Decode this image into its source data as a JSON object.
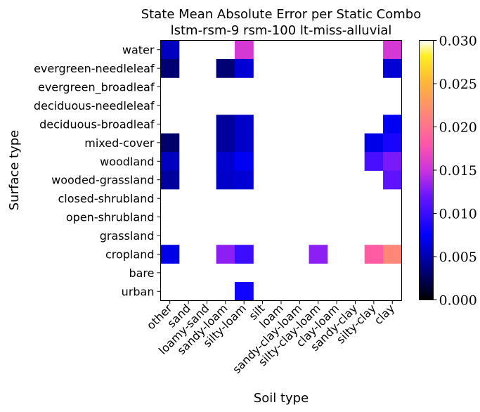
{
  "chart_data": {
    "type": "heatmap",
    "title": "State Mean Absolute Error per Static Combo",
    "subtitle": "lstm-rsm-9 rsm-100 lt-miss-alluvial",
    "xlabel": "Soil type",
    "ylabel": "Surface type",
    "x_categories": [
      "other",
      "sand",
      "loamy-sand",
      "sandy-loam",
      "silty-loam",
      "silt",
      "loam",
      "sandy-clay-loam",
      "silty-clay-loam",
      "clay-loam",
      "sandy-clay",
      "silty-clay",
      "clay"
    ],
    "y_categories": [
      "water",
      "evergreen-needleleaf",
      "evergreen_broadleaf",
      "deciduous-needleleaf",
      "deciduous-broadleaf",
      "mixed-cover",
      "woodland",
      "wooded-grassland",
      "closed-shrubland",
      "open-shrubland",
      "grassland",
      "cropland",
      "bare",
      "urban"
    ],
    "values": [
      [
        0.0055,
        null,
        null,
        null,
        0.0155,
        null,
        null,
        null,
        null,
        null,
        null,
        null,
        0.0155
      ],
      [
        0.0032,
        null,
        null,
        0.0033,
        0.0062,
        null,
        null,
        null,
        null,
        null,
        null,
        null,
        0.0062
      ],
      [
        null,
        null,
        null,
        null,
        null,
        null,
        null,
        null,
        null,
        null,
        null,
        null,
        null
      ],
      [
        null,
        null,
        null,
        null,
        null,
        null,
        null,
        null,
        null,
        null,
        null,
        null,
        null
      ],
      [
        null,
        null,
        null,
        0.0045,
        0.0058,
        null,
        null,
        null,
        null,
        null,
        null,
        null,
        0.0072
      ],
      [
        0.003,
        null,
        null,
        0.0045,
        0.0058,
        null,
        null,
        null,
        null,
        null,
        null,
        0.0068,
        0.0085
      ],
      [
        0.0055,
        null,
        null,
        0.006,
        0.0072,
        null,
        null,
        null,
        null,
        null,
        null,
        0.0105,
        0.0125
      ],
      [
        0.0045,
        null,
        null,
        0.0058,
        0.0062,
        null,
        null,
        null,
        null,
        null,
        null,
        null,
        0.0115
      ],
      [
        null,
        null,
        null,
        null,
        null,
        null,
        null,
        null,
        null,
        null,
        null,
        null,
        null
      ],
      [
        null,
        null,
        null,
        null,
        null,
        null,
        null,
        null,
        null,
        null,
        null,
        null,
        null
      ],
      [
        null,
        null,
        null,
        null,
        null,
        null,
        null,
        null,
        null,
        null,
        null,
        null,
        null
      ],
      [
        0.0068,
        null,
        null,
        0.013,
        0.01,
        null,
        null,
        null,
        0.013,
        null,
        null,
        0.0185,
        0.0215
      ],
      [
        null,
        null,
        null,
        null,
        null,
        null,
        null,
        null,
        null,
        null,
        null,
        null,
        null
      ],
      [
        null,
        null,
        null,
        null,
        0.0082,
        null,
        null,
        null,
        null,
        null,
        null,
        null,
        null
      ]
    ],
    "colormap": "gnuplot2",
    "colorbar": {
      "range": [
        0.0,
        0.03
      ],
      "ticks": [
        "0.000",
        "0.005",
        "0.010",
        "0.015",
        "0.020",
        "0.025",
        "0.030"
      ],
      "tick_values": [
        0.0,
        0.005,
        0.01,
        0.015,
        0.02,
        0.025,
        0.03
      ]
    },
    "grid": false,
    "missing_color": "#ffffff"
  }
}
